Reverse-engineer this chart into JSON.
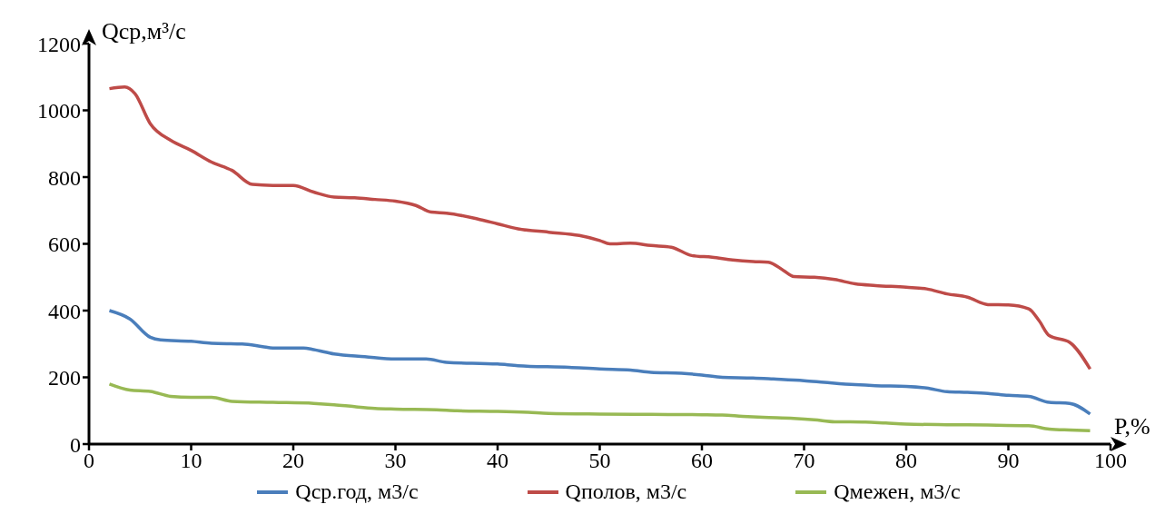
{
  "chart_data": {
    "type": "line",
    "ylabel": "Qср,м³/с",
    "xlabel": "P,%",
    "xlim": [
      0,
      100
    ],
    "xticks": [
      0,
      10,
      20,
      30,
      40,
      50,
      60,
      70,
      80,
      90,
      100
    ],
    "ylim": [
      0,
      1200
    ],
    "yticks": [
      0,
      200,
      400,
      600,
      800,
      1000,
      1200
    ],
    "grid": false,
    "legend": "bottom",
    "marker": "none",
    "line_style": "solid",
    "series": [
      {
        "name": "Qср.год, м3/с",
        "color": "#4a7ebb",
        "x": [
          2,
          4,
          6,
          7,
          10,
          12,
          15,
          17,
          18,
          21,
          22,
          24,
          27,
          30,
          33,
          35,
          40,
          42,
          47,
          50,
          53,
          55,
          58,
          60,
          62,
          65,
          67,
          70,
          72,
          75,
          77,
          80,
          82,
          84,
          86,
          88,
          90,
          92,
          94,
          96,
          98
        ],
        "values": [
          400,
          375,
          320,
          312,
          308,
          302,
          300,
          292,
          288,
          288,
          283,
          270,
          262,
          255,
          255,
          245,
          240,
          235,
          230,
          225,
          222,
          215,
          212,
          207,
          200,
          198,
          195,
          190,
          185,
          178,
          175,
          173,
          168,
          157,
          155,
          152,
          146,
          143,
          125,
          122,
          90
        ]
      },
      {
        "name": "Qполов, м3/с",
        "color": "#be4b48",
        "x": [
          2,
          3.5,
          4.5,
          6,
          8,
          10,
          12,
          14,
          16,
          18,
          20,
          22,
          24,
          26,
          28,
          30,
          32,
          33.5,
          35,
          38,
          40,
          42,
          45,
          48,
          50,
          51,
          53,
          55,
          57,
          59,
          61,
          63,
          65,
          66.5,
          68,
          69,
          71,
          73,
          75,
          77,
          80,
          82,
          84,
          86,
          88,
          90,
          92,
          93,
          94,
          96,
          98
        ],
        "values": [
          1065,
          1070,
          1050,
          960,
          910,
          880,
          845,
          820,
          778,
          775,
          775,
          755,
          740,
          738,
          733,
          728,
          715,
          695,
          692,
          675,
          660,
          645,
          635,
          625,
          610,
          600,
          602,
          595,
          590,
          565,
          560,
          552,
          547,
          545,
          520,
          502,
          500,
          493,
          480,
          475,
          470,
          465,
          450,
          440,
          418,
          417,
          405,
          370,
          325,
          305,
          225
        ]
      },
      {
        "name": "Qмежен, м3/с",
        "color": "#98b954",
        "x": [
          2,
          4,
          6,
          8,
          10,
          12,
          14,
          18,
          22,
          24,
          26,
          28,
          30,
          34,
          36,
          40,
          43,
          45,
          50,
          55,
          60,
          62,
          64,
          66,
          69,
          71,
          73,
          76,
          78,
          80,
          84,
          88,
          92,
          94,
          96,
          98
        ],
        "values": [
          180,
          162,
          158,
          143,
          140,
          140,
          128,
          125,
          122,
          118,
          112,
          107,
          105,
          103,
          100,
          98,
          95,
          92,
          90,
          89,
          88,
          87,
          83,
          80,
          77,
          73,
          67,
          66,
          63,
          60,
          58,
          57,
          55,
          45,
          42,
          40
        ]
      }
    ]
  }
}
